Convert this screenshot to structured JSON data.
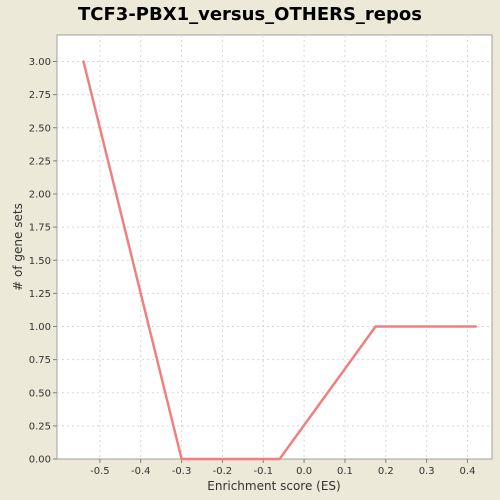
{
  "chart_data": {
    "type": "line",
    "title": "TCF3-PBX1_versus_OTHERS_repos",
    "xlabel": "Enrichment score (ES)",
    "ylabel": "# of gene sets",
    "xlim": [
      -0.605,
      0.46
    ],
    "ylim": [
      0,
      3.2
    ],
    "xticks": [
      -0.5,
      -0.4,
      -0.3,
      -0.2,
      -0.1,
      0.0,
      0.1,
      0.2,
      0.3,
      0.4
    ],
    "xtick_labels": [
      "-0.5",
      "-0.4",
      "-0.3",
      "-0.2",
      "-0.1",
      "0.0",
      "0.1",
      "0.2",
      "0.3",
      "0.4"
    ],
    "yticks": [
      0,
      0.25,
      0.5,
      0.75,
      1.0,
      1.25,
      1.5,
      1.75,
      2.0,
      2.25,
      2.5,
      2.75,
      3.0
    ],
    "ytick_labels": [
      "0.00",
      "0.25",
      "0.50",
      "0.75",
      "1.00",
      "1.25",
      "1.50",
      "1.75",
      "2.00",
      "2.25",
      "2.50",
      "2.75",
      "3.00"
    ],
    "grid": true,
    "series": [
      {
        "color": "#f08080",
        "x": [
          -0.54,
          -0.3,
          -0.06,
          0.175,
          0.42
        ],
        "y": [
          3.0,
          0.0,
          0.0,
          1.0,
          1.0
        ]
      }
    ]
  },
  "colors": {
    "background": "#ece9d8",
    "plot_background": "#ffffff",
    "line": "#f08080",
    "grid": "#d8d8d8"
  }
}
